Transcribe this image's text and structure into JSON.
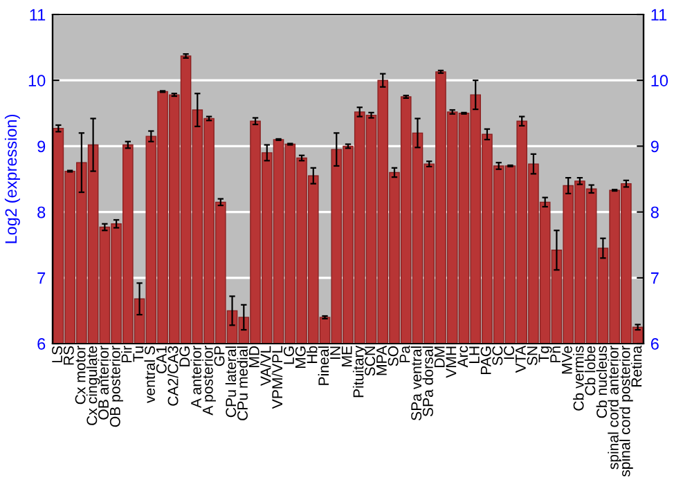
{
  "chart_data": {
    "type": "bar",
    "ylabel": "Log2 (expression)",
    "categories": [
      "LS",
      "RS",
      "Cx motor",
      "Cx cingulate",
      "OB anterior",
      "OB posterior",
      "Pir",
      "Tu",
      "ventral S",
      "CA1",
      "CA2/CA3",
      "DG",
      "A anterior",
      "A posterior",
      "GP",
      "CPu lateral",
      "CPu medial",
      "MD",
      "VA/VL",
      "VPM/VPL",
      "LG",
      "MG",
      "Hb",
      "Pineal",
      "IN",
      "ME",
      "Pituitary",
      "SCN",
      "MPA",
      "SO",
      "Pa",
      "SPa ventral",
      "SPa dorsal",
      "DM",
      "VMH",
      "Arc",
      "LH",
      "PAG",
      "SC",
      "IC",
      "VTA",
      "SN",
      "Tg",
      "Pn",
      "MVe",
      "Cb vermis",
      "Cb lobe",
      "Cb nucleus",
      "spinal cord anterior",
      "spinal cord posterior",
      "Retina"
    ],
    "values": [
      9.27,
      8.62,
      8.75,
      9.02,
      7.77,
      7.82,
      9.02,
      6.68,
      9.15,
      9.83,
      9.78,
      10.37,
      9.55,
      9.42,
      8.15,
      6.5,
      6.4,
      9.38,
      8.9,
      9.1,
      9.03,
      8.82,
      8.55,
      6.4,
      8.95,
      9.0,
      9.52,
      9.47,
      10.0,
      8.6,
      9.75,
      9.2,
      8.73,
      10.13,
      9.52,
      9.5,
      9.78,
      9.18,
      8.7,
      8.7,
      9.38,
      8.73,
      8.15,
      7.42,
      8.4,
      8.47,
      8.35,
      7.45,
      8.33,
      8.43,
      6.25
    ],
    "errors": [
      0.05,
      0.01,
      0.45,
      0.4,
      0.05,
      0.06,
      0.05,
      0.24,
      0.08,
      0.01,
      0.02,
      0.03,
      0.25,
      0.03,
      0.05,
      0.22,
      0.19,
      0.05,
      0.12,
      0.01,
      0.01,
      0.04,
      0.12,
      0.02,
      0.25,
      0.03,
      0.07,
      0.04,
      0.1,
      0.07,
      0.02,
      0.22,
      0.04,
      0.02,
      0.03,
      0.01,
      0.22,
      0.08,
      0.05,
      0.01,
      0.07,
      0.15,
      0.07,
      0.3,
      0.12,
      0.05,
      0.06,
      0.15,
      0.01,
      0.05,
      0.04
    ],
    "color": "#b83535",
    "ylim": [
      6,
      11
    ],
    "yticks": [
      6,
      7,
      8,
      9,
      10,
      11
    ],
    "y2lim": [
      6,
      11
    ],
    "y2ticks": [
      6,
      7,
      8,
      9,
      10,
      11
    ],
    "grid": "y"
  }
}
